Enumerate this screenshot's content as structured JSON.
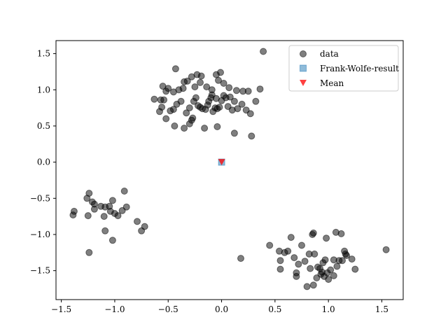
{
  "chart_data": {
    "type": "scatter",
    "title": "",
    "xlabel": "",
    "ylabel": "",
    "xlim": [
      -1.55,
      1.7
    ],
    "ylim": [
      -1.9,
      1.68
    ],
    "xticks": [
      -1.5,
      -1.0,
      -0.5,
      0.0,
      0.5,
      1.0,
      1.5
    ],
    "xtick_labels": [
      "−1.5",
      "−1.0",
      "−0.5",
      "0.0",
      "0.5",
      "1.0",
      "1.5"
    ],
    "yticks": [
      -1.5,
      -1.0,
      -0.5,
      0.0,
      0.5,
      1.0,
      1.5
    ],
    "ytick_labels": [
      "−1.5",
      "−1.0",
      "−0.5",
      "0.0",
      "0.5",
      "1.0",
      "1.5"
    ],
    "grid": false,
    "legend_position": "top-right",
    "series": [
      {
        "name": "data",
        "marker": "circle",
        "color": "#000000",
        "alpha": 0.5,
        "points": [
          [
            -0.55,
            1.05
          ],
          [
            -0.52,
            0.98
          ],
          [
            -0.5,
            1.02
          ],
          [
            -0.45,
            0.97
          ],
          [
            -0.43,
            1.29
          ],
          [
            -0.4,
            1.0
          ],
          [
            -0.36,
            1.02
          ],
          [
            -0.35,
            1.11
          ],
          [
            -0.32,
            1.12
          ],
          [
            -0.28,
            1.18
          ],
          [
            -0.25,
            1.04
          ],
          [
            -0.23,
            1.21
          ],
          [
            -0.2,
            1.1
          ],
          [
            -0.19,
            1.19
          ],
          [
            -0.14,
            1.04
          ],
          [
            -0.09,
            1.0
          ],
          [
            -0.05,
            1.21
          ],
          [
            -0.03,
            1.13
          ],
          [
            -0.01,
            1.24
          ],
          [
            0.02,
            1.09
          ],
          [
            0.07,
            1.03
          ],
          [
            0.14,
            0.99
          ],
          [
            0.2,
            0.98
          ],
          [
            0.25,
            0.98
          ],
          [
            0.36,
            1.01
          ],
          [
            0.39,
            1.53
          ],
          [
            -0.63,
            0.87
          ],
          [
            -0.57,
            0.86
          ],
          [
            -0.56,
            0.76
          ],
          [
            -0.54,
            0.86
          ],
          [
            -0.48,
            0.71
          ],
          [
            -0.45,
            0.73
          ],
          [
            -0.42,
            0.8
          ],
          [
            -0.38,
            0.84
          ],
          [
            -0.33,
            0.68
          ],
          [
            -0.3,
            0.53
          ],
          [
            -0.28,
            0.58
          ],
          [
            -0.26,
            0.84
          ],
          [
            -0.24,
            0.89
          ],
          [
            -0.22,
            0.78
          ],
          [
            -0.2,
            0.76
          ],
          [
            -0.18,
            0.74
          ],
          [
            -0.15,
            0.73
          ],
          [
            -0.13,
            0.79
          ],
          [
            -0.12,
            0.84
          ],
          [
            -0.1,
            0.89
          ],
          [
            -0.09,
            0.93
          ],
          [
            -0.08,
            0.7
          ],
          [
            -0.06,
            0.75
          ],
          [
            -0.05,
            0.88
          ],
          [
            -0.04,
            0.74
          ],
          [
            -0.02,
            0.76
          ],
          [
            0.0,
            0.85
          ],
          [
            0.02,
            0.92
          ],
          [
            0.04,
            0.89
          ],
          [
            0.06,
            0.77
          ],
          [
            0.08,
            0.9
          ],
          [
            0.1,
            0.72
          ],
          [
            0.12,
            0.84
          ],
          [
            0.15,
            0.74
          ],
          [
            0.19,
            0.8
          ],
          [
            0.23,
            0.72
          ],
          [
            0.27,
            0.67
          ],
          [
            0.32,
            0.84
          ],
          [
            -0.35,
            0.47
          ],
          [
            -0.27,
            0.61
          ],
          [
            -0.16,
            0.47
          ],
          [
            -0.04,
            0.49
          ],
          [
            0.12,
            0.4
          ],
          [
            0.28,
            0.36
          ],
          [
            -0.52,
            0.6
          ],
          [
            -0.44,
            0.5
          ],
          [
            -0.58,
            0.7
          ],
          [
            -0.3,
            0.75
          ],
          [
            -1.39,
            -0.73
          ],
          [
            -1.38,
            -0.68
          ],
          [
            -1.26,
            -0.5
          ],
          [
            -1.25,
            -0.74
          ],
          [
            -1.24,
            -0.43
          ],
          [
            -1.21,
            -0.55
          ],
          [
            -1.19,
            -0.58
          ],
          [
            -1.19,
            -0.65
          ],
          [
            -1.13,
            -0.61
          ],
          [
            -1.1,
            -0.75
          ],
          [
            -1.09,
            -0.95
          ],
          [
            -1.09,
            -0.62
          ],
          [
            -1.05,
            -0.61
          ],
          [
            -1.04,
            -0.68
          ],
          [
            -1.02,
            -0.53
          ],
          [
            -1.02,
            -1.08
          ],
          [
            -1.0,
            -0.71
          ],
          [
            -0.97,
            -0.74
          ],
          [
            -0.93,
            -0.67
          ],
          [
            -0.91,
            -0.4
          ],
          [
            -0.89,
            -0.62
          ],
          [
            -0.79,
            -0.82
          ],
          [
            -0.75,
            -0.95
          ],
          [
            -0.72,
            -0.89
          ],
          [
            -1.24,
            -1.25
          ],
          [
            0.18,
            -1.33
          ],
          [
            0.45,
            -1.15
          ],
          [
            0.54,
            -1.23
          ],
          [
            0.55,
            -1.36
          ],
          [
            0.55,
            -1.48
          ],
          [
            0.59,
            -1.25
          ],
          [
            0.62,
            -1.23
          ],
          [
            0.65,
            -1.04
          ],
          [
            0.68,
            -1.32
          ],
          [
            0.7,
            -1.53
          ],
          [
            0.7,
            -1.58
          ],
          [
            0.72,
            -1.41
          ],
          [
            0.75,
            -1.15
          ],
          [
            0.78,
            -1.37
          ],
          [
            0.8,
            -1.72
          ],
          [
            0.82,
            -1.27
          ],
          [
            0.83,
            -1.47
          ],
          [
            0.85,
            -1.0
          ],
          [
            0.86,
            -1.7
          ],
          [
            0.87,
            -1.27
          ],
          [
            0.89,
            -1.6
          ],
          [
            0.9,
            -1.45
          ],
          [
            0.92,
            -1.47
          ],
          [
            0.93,
            -1.55
          ],
          [
            0.94,
            -1.52
          ],
          [
            0.95,
            -1.39
          ],
          [
            0.96,
            -1.58
          ],
          [
            0.97,
            -1.35
          ],
          [
            0.98,
            -1.05
          ],
          [
            0.99,
            -1.53
          ],
          [
            1.0,
            -1.62
          ],
          [
            1.02,
            -1.49
          ],
          [
            1.05,
            -1.57
          ],
          [
            1.07,
            -0.97
          ],
          [
            1.08,
            -1.44
          ],
          [
            1.1,
            -1.36
          ],
          [
            1.12,
            -0.99
          ],
          [
            1.13,
            -1.36
          ],
          [
            1.15,
            -1.23
          ],
          [
            1.16,
            -1.27
          ],
          [
            1.17,
            -1.29
          ],
          [
            1.22,
            -1.34
          ],
          [
            1.25,
            -1.48
          ],
          [
            1.54,
            -1.21
          ],
          [
            0.86,
            -0.98
          ],
          [
            1.05,
            -1.35
          ]
        ]
      },
      {
        "name": "Frank-Wolfe-result",
        "marker": "square",
        "color": "#1f77b4",
        "alpha": 0.5,
        "points": [
          [
            0.0,
            0.0
          ]
        ]
      },
      {
        "name": "Mean",
        "marker": "triangle-down",
        "color": "#ff0000",
        "alpha": 0.75,
        "points": [
          [
            0.0,
            0.0
          ]
        ]
      }
    ],
    "legend": {
      "entries": [
        "data",
        "Frank-Wolfe-result",
        "Mean"
      ]
    }
  }
}
